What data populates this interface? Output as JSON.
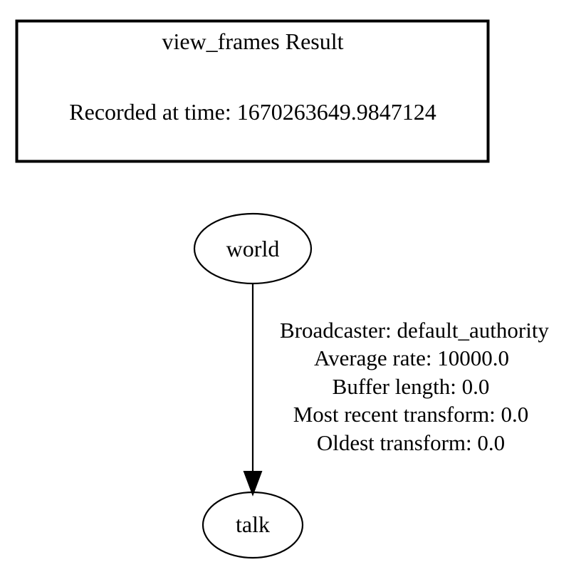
{
  "header": {
    "title": "view_frames Result",
    "recorded": "Recorded at time: 1670263649.9847124"
  },
  "nodes": {
    "parent": "world",
    "child": "talk"
  },
  "edge": {
    "lines": [
      "Broadcaster: default_authority",
      "Average rate: 10000.0",
      "Buffer length: 0.0",
      "Most recent transform: 0.0",
      "Oldest transform: 0.0"
    ]
  }
}
